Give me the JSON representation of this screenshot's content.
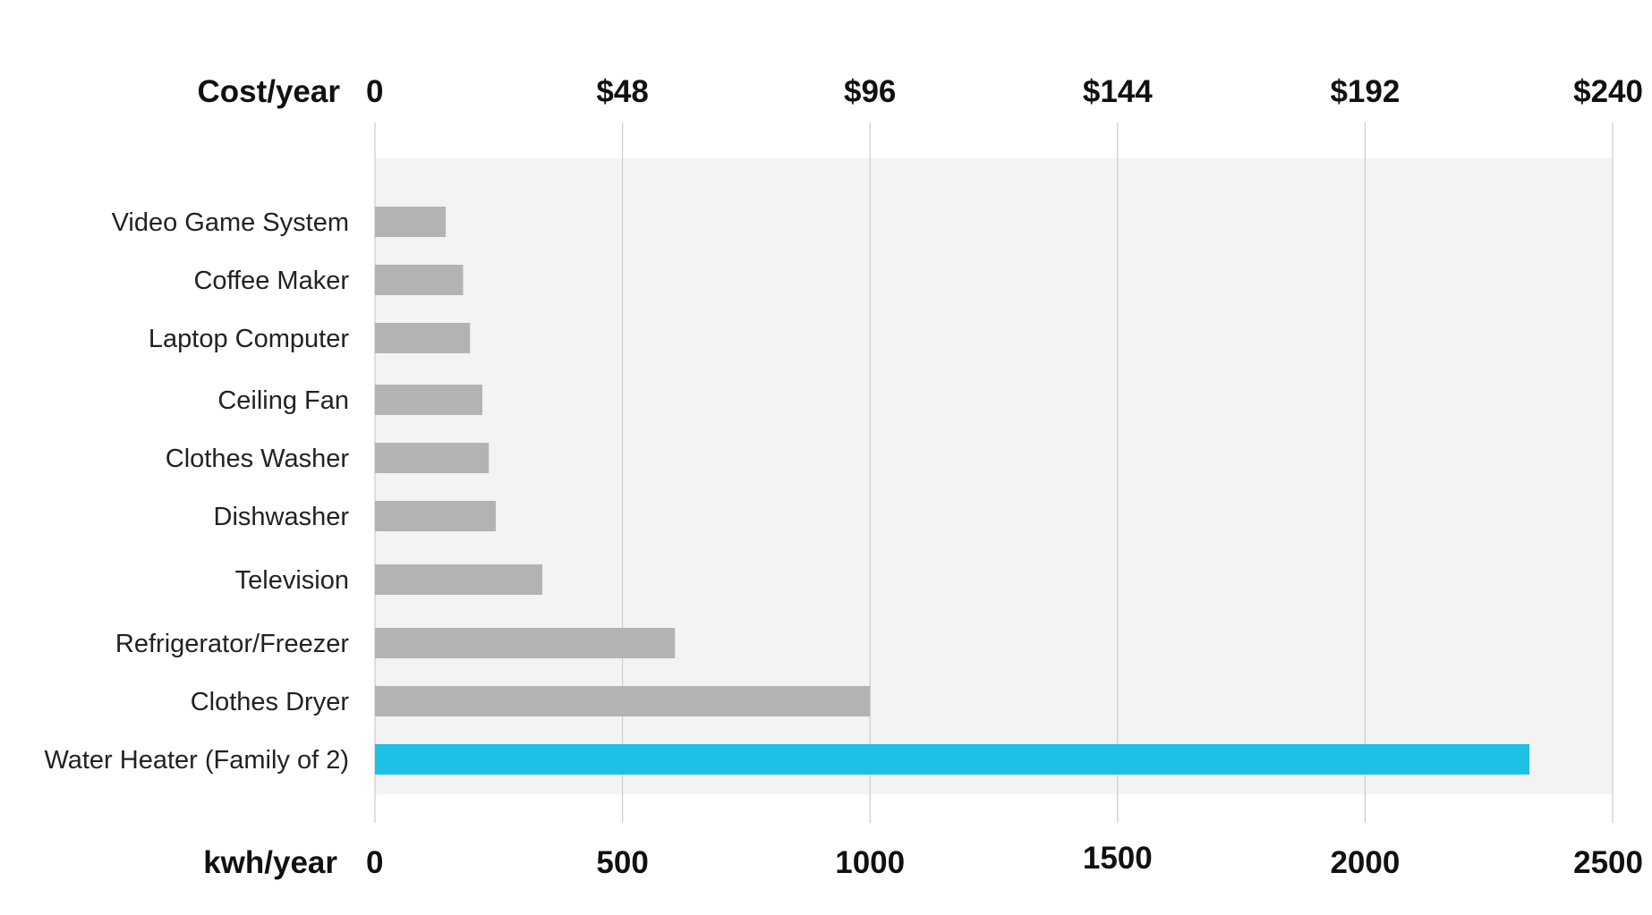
{
  "chart_data": {
    "type": "bar",
    "orientation": "horizontal",
    "categories": [
      "Video Game System",
      "Coffee Maker",
      "Laptop Computer",
      "Ceiling Fan",
      "Clothes Washer",
      "Dishwasher",
      "Television",
      "Refrigerator/Freezer",
      "Clothes Dryer",
      "Water Heater (Family of 2)"
    ],
    "values": [
      143,
      178,
      192,
      217,
      230,
      244,
      338,
      606,
      1000,
      2332
    ],
    "value_unit": "kwh/year",
    "highlight_index": 9,
    "bottom_axis": {
      "label": "kwh/year",
      "ticks": [
        "0",
        "500",
        "1000",
        "1500",
        "2000",
        "2500"
      ],
      "tick_values": [
        0,
        500,
        1000,
        1500,
        2000,
        2500
      ],
      "range": [
        0,
        2500
      ]
    },
    "top_axis": {
      "label": "Cost/year",
      "ticks": [
        "0",
        "$48",
        "$96",
        "$144",
        "$192",
        "$240"
      ],
      "tick_values": [
        0,
        500,
        1000,
        1500,
        2000,
        2500
      ],
      "range": [
        0,
        240
      ]
    },
    "grid": "vertical",
    "legend": "none"
  },
  "colors": {
    "bar": "#b3b3b3",
    "highlight": "#1fc0e6",
    "plot_background": "#f3f3f3",
    "grid": "#cccccc",
    "text": "#111111"
  }
}
